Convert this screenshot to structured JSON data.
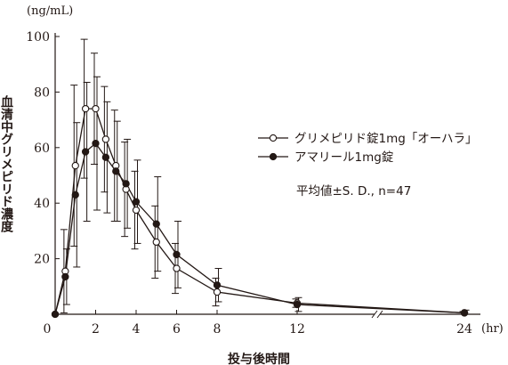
{
  "chart_data": {
    "type": "line",
    "y_unit": "(ng/mL)",
    "x_unit": "(hr)",
    "xlabel": "投与後時間",
    "ylabel": "血清中グリメピリド濃度",
    "ylim": [
      0,
      100
    ],
    "y_ticks": [
      0,
      20,
      40,
      60,
      80,
      100
    ],
    "x_ticks": [
      0,
      2,
      4,
      6,
      8,
      12,
      24
    ],
    "x_axis_break": true,
    "stats_note": "平均値±S. D., n=47",
    "series": [
      {
        "name": "グリメピリド錠1mg「オーハラ」",
        "marker": "open-circle",
        "x": [
          0,
          0.5,
          1,
          1.5,
          2,
          2.5,
          3,
          3.5,
          4,
          5,
          6,
          8,
          12,
          24
        ],
        "y": [
          0,
          15.5,
          53.5,
          74,
          74,
          63,
          53.5,
          45,
          37.5,
          26,
          16.5,
          8,
          4,
          0.5
        ],
        "sd": [
          0,
          15,
          29,
          25,
          20,
          19,
          20,
          17,
          14,
          13,
          9,
          5,
          1.5,
          0.5
        ]
      },
      {
        "name": "アマリール1mg錠",
        "marker": "filled-circle",
        "x": [
          0,
          0.5,
          1,
          1.5,
          2,
          2.5,
          3,
          3.5,
          4,
          5,
          6,
          8,
          12,
          24
        ],
        "y": [
          0,
          13.5,
          43,
          58.5,
          61.5,
          56.5,
          51.5,
          47,
          40.5,
          32.5,
          21.5,
          10.5,
          3.5,
          0.5
        ],
        "sd": [
          0,
          10,
          26,
          25,
          24,
          20,
          18,
          16,
          15,
          17,
          12,
          6,
          2.5,
          1
        ]
      }
    ]
  }
}
